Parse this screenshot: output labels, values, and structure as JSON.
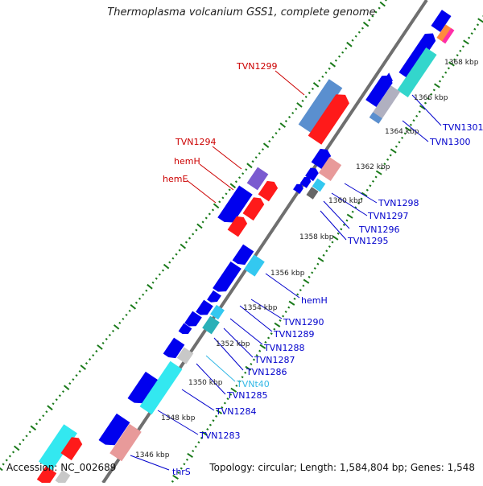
{
  "title": "Thermoplasma volcanium GSS1, complete genome",
  "footer": {
    "accession": "Accession: NC_002689",
    "topology": "Topology: circular; Length: 1,584,804 bp; Genes: 1,548"
  },
  "colors": {
    "backbone": "#808080",
    "forward_dots": "#1a7a1a",
    "reverse_dots": "#1a7a1a",
    "cds": "#0000ee",
    "cds_alt": "#ff1a1a",
    "trna": "#33d6f0",
    "label_blue": "#0000cc",
    "label_red": "#cc0000",
    "label_cyan": "#33b8e6"
  },
  "kbp_labels": [
    "1346 kbp",
    "1348 kbp",
    "1350 kbp",
    "1352 kbp",
    "1354 kbp",
    "1356 kbp",
    "1358 kbp",
    "1360 kbp",
    "1362 kbp",
    "1364 kbp",
    "1366 kbp",
    "1368 kbp"
  ],
  "gene_labels": {
    "tvn1299": "TVN1299",
    "tvn1294": "TVN1294",
    "hemh_red": "hemH",
    "heme": "hemE",
    "tvn1301": "TVN1301",
    "tvn1300": "TVN1300",
    "tvn1298": "TVN1298",
    "tvn1297": "TVN1297",
    "tvn1296": "TVN1296",
    "tvn1295": "TVN1295",
    "hemh_blue": "hemH",
    "tvn1290": "TVN1290",
    "tvn1289": "TVN1289",
    "tvn1288": "TVN1288",
    "tvn1287": "TVN1287",
    "tvn1286": "TVN1286",
    "tvnt40": "TVNt40",
    "tvn1285": "TVN1285",
    "tvn1284": "TVN1284",
    "tvn1283": "TVN1283",
    "thrs": "thrS"
  }
}
